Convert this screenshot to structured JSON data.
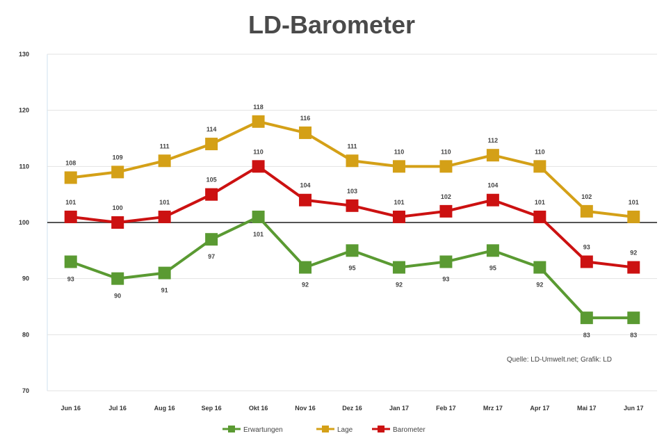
{
  "chart_data": {
    "type": "line",
    "title": "LD-Barometer",
    "xlabel": "",
    "ylabel": "",
    "categories": [
      "Jun 16",
      "Jul 16",
      "Aug 16",
      "Sep 16",
      "Okt 16",
      "Nov 16",
      "Dez 16",
      "Jan 17",
      "Feb 17",
      "Mrz 17",
      "Apr 17",
      "Mai 17",
      "Jun 17"
    ],
    "y_ticks": [
      70,
      80,
      90,
      100,
      110,
      120,
      130
    ],
    "ylim": [
      70,
      130
    ],
    "baseline": 100,
    "grid": true,
    "legend_position": "bottom",
    "source": "Quelle: LD-Umwelt.net; Grafik: LD",
    "series": [
      {
        "name": "Erwartungen",
        "color": "#5a9a32",
        "label_position": "below",
        "values": [
          93,
          90,
          91,
          97,
          101,
          92,
          95,
          92,
          93,
          95,
          92,
          83,
          83
        ]
      },
      {
        "name": "Lage",
        "color": "#d4a017",
        "label_position": "above",
        "values": [
          108,
          109,
          111,
          114,
          118,
          116,
          111,
          110,
          110,
          112,
          110,
          102,
          101
        ]
      },
      {
        "name": "Barometer",
        "color": "#cc1111",
        "label_position": "above",
        "values": [
          101,
          100,
          101,
          105,
          110,
          104,
          103,
          101,
          102,
          104,
          101,
          93,
          92
        ]
      }
    ]
  }
}
